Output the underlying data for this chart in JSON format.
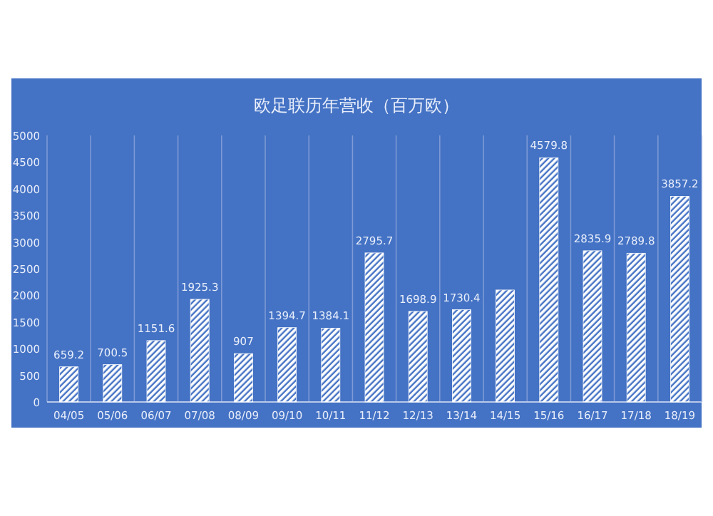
{
  "chart_data": {
    "type": "bar",
    "title": "欧足联历年营收（百万欧）",
    "categories": [
      "04/05",
      "05/06",
      "06/07",
      "07/08",
      "08/09",
      "09/10",
      "10/11",
      "11/12",
      "12/13",
      "13/14",
      "14/15",
      "15/16",
      "16/17",
      "17/18",
      "18/19"
    ],
    "values": [
      659.2,
      700.5,
      1151.6,
      1925.3,
      907,
      1394.7,
      1384.1,
      2795.7,
      1698.9,
      1730.4,
      2100,
      4579.8,
      2835.9,
      2789.8,
      3857.2
    ],
    "value_labels": [
      "659.2",
      "700.5",
      "1151.6",
      "1925.3",
      "907",
      "1394.7",
      "1384.1",
      "2795.7",
      "1698.9",
      "1730.4",
      null,
      "4579.8",
      "2835.9",
      "2789.8",
      "3857.2"
    ],
    "color": "#ffffff",
    "ylim": [
      0,
      5000
    ],
    "yticks": [
      0,
      500,
      1000,
      1500,
      2000,
      2500,
      3000,
      3500,
      4000,
      4500,
      5000
    ],
    "grid": "x"
  }
}
